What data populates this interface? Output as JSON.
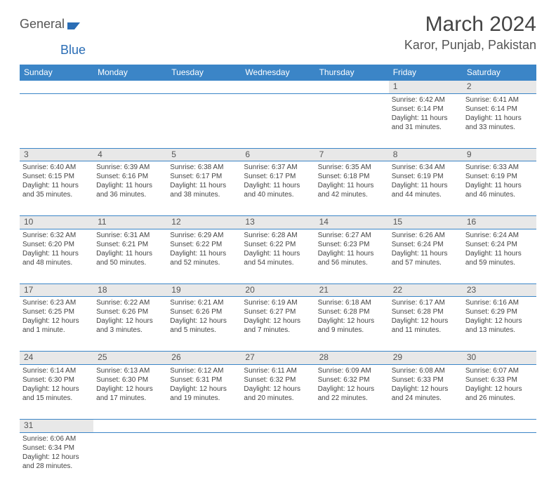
{
  "brand": {
    "part1": "General",
    "part2": "Blue"
  },
  "title": "March 2024",
  "location": "Karor, Punjab, Pakistan",
  "colors": {
    "header_bg": "#3b85c7",
    "header_text": "#ffffff",
    "daynum_bg": "#e8e8e8",
    "border": "#3b85c7",
    "text": "#444444",
    "brand_gray": "#555555",
    "brand_blue": "#2a6db5"
  },
  "weekdays": [
    "Sunday",
    "Monday",
    "Tuesday",
    "Wednesday",
    "Thursday",
    "Friday",
    "Saturday"
  ],
  "weeks": [
    {
      "nums": [
        "",
        "",
        "",
        "",
        "",
        "1",
        "2"
      ],
      "cells": [
        null,
        null,
        null,
        null,
        null,
        {
          "sunrise": "6:42 AM",
          "sunset": "6:14 PM",
          "daylight": "11 hours and 31 minutes."
        },
        {
          "sunrise": "6:41 AM",
          "sunset": "6:14 PM",
          "daylight": "11 hours and 33 minutes."
        }
      ]
    },
    {
      "nums": [
        "3",
        "4",
        "5",
        "6",
        "7",
        "8",
        "9"
      ],
      "cells": [
        {
          "sunrise": "6:40 AM",
          "sunset": "6:15 PM",
          "daylight": "11 hours and 35 minutes."
        },
        {
          "sunrise": "6:39 AM",
          "sunset": "6:16 PM",
          "daylight": "11 hours and 36 minutes."
        },
        {
          "sunrise": "6:38 AM",
          "sunset": "6:17 PM",
          "daylight": "11 hours and 38 minutes."
        },
        {
          "sunrise": "6:37 AM",
          "sunset": "6:17 PM",
          "daylight": "11 hours and 40 minutes."
        },
        {
          "sunrise": "6:35 AM",
          "sunset": "6:18 PM",
          "daylight": "11 hours and 42 minutes."
        },
        {
          "sunrise": "6:34 AM",
          "sunset": "6:19 PM",
          "daylight": "11 hours and 44 minutes."
        },
        {
          "sunrise": "6:33 AM",
          "sunset": "6:19 PM",
          "daylight": "11 hours and 46 minutes."
        }
      ]
    },
    {
      "nums": [
        "10",
        "11",
        "12",
        "13",
        "14",
        "15",
        "16"
      ],
      "cells": [
        {
          "sunrise": "6:32 AM",
          "sunset": "6:20 PM",
          "daylight": "11 hours and 48 minutes."
        },
        {
          "sunrise": "6:31 AM",
          "sunset": "6:21 PM",
          "daylight": "11 hours and 50 minutes."
        },
        {
          "sunrise": "6:29 AM",
          "sunset": "6:22 PM",
          "daylight": "11 hours and 52 minutes."
        },
        {
          "sunrise": "6:28 AM",
          "sunset": "6:22 PM",
          "daylight": "11 hours and 54 minutes."
        },
        {
          "sunrise": "6:27 AM",
          "sunset": "6:23 PM",
          "daylight": "11 hours and 56 minutes."
        },
        {
          "sunrise": "6:26 AM",
          "sunset": "6:24 PM",
          "daylight": "11 hours and 57 minutes."
        },
        {
          "sunrise": "6:24 AM",
          "sunset": "6:24 PM",
          "daylight": "11 hours and 59 minutes."
        }
      ]
    },
    {
      "nums": [
        "17",
        "18",
        "19",
        "20",
        "21",
        "22",
        "23"
      ],
      "cells": [
        {
          "sunrise": "6:23 AM",
          "sunset": "6:25 PM",
          "daylight": "12 hours and 1 minute."
        },
        {
          "sunrise": "6:22 AM",
          "sunset": "6:26 PM",
          "daylight": "12 hours and 3 minutes."
        },
        {
          "sunrise": "6:21 AM",
          "sunset": "6:26 PM",
          "daylight": "12 hours and 5 minutes."
        },
        {
          "sunrise": "6:19 AM",
          "sunset": "6:27 PM",
          "daylight": "12 hours and 7 minutes."
        },
        {
          "sunrise": "6:18 AM",
          "sunset": "6:28 PM",
          "daylight": "12 hours and 9 minutes."
        },
        {
          "sunrise": "6:17 AM",
          "sunset": "6:28 PM",
          "daylight": "12 hours and 11 minutes."
        },
        {
          "sunrise": "6:16 AM",
          "sunset": "6:29 PM",
          "daylight": "12 hours and 13 minutes."
        }
      ]
    },
    {
      "nums": [
        "24",
        "25",
        "26",
        "27",
        "28",
        "29",
        "30"
      ],
      "cells": [
        {
          "sunrise": "6:14 AM",
          "sunset": "6:30 PM",
          "daylight": "12 hours and 15 minutes."
        },
        {
          "sunrise": "6:13 AM",
          "sunset": "6:30 PM",
          "daylight": "12 hours and 17 minutes."
        },
        {
          "sunrise": "6:12 AM",
          "sunset": "6:31 PM",
          "daylight": "12 hours and 19 minutes."
        },
        {
          "sunrise": "6:11 AM",
          "sunset": "6:32 PM",
          "daylight": "12 hours and 20 minutes."
        },
        {
          "sunrise": "6:09 AM",
          "sunset": "6:32 PM",
          "daylight": "12 hours and 22 minutes."
        },
        {
          "sunrise": "6:08 AM",
          "sunset": "6:33 PM",
          "daylight": "12 hours and 24 minutes."
        },
        {
          "sunrise": "6:07 AM",
          "sunset": "6:33 PM",
          "daylight": "12 hours and 26 minutes."
        }
      ]
    },
    {
      "nums": [
        "31",
        "",
        "",
        "",
        "",
        "",
        ""
      ],
      "cells": [
        {
          "sunrise": "6:06 AM",
          "sunset": "6:34 PM",
          "daylight": "12 hours and 28 minutes."
        },
        null,
        null,
        null,
        null,
        null,
        null
      ]
    }
  ],
  "labels": {
    "sunrise": "Sunrise:",
    "sunset": "Sunset:",
    "daylight": "Daylight:"
  }
}
